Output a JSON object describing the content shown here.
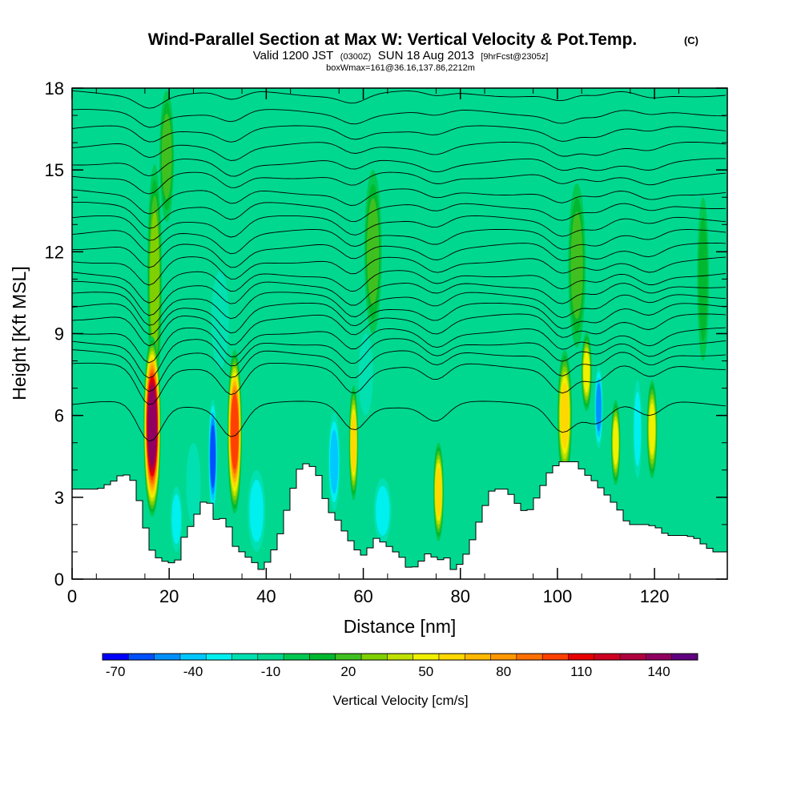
{
  "header": {
    "title": "Wind-Parallel Section at Max W: Vertical Velocity & Pot.Temp.",
    "title_mark": "(C)",
    "subtitle_a": "Valid 1200 JST",
    "subtitle_b": "(0300Z)",
    "subtitle_c": "SUN 18 Aug 2013",
    "subtitle_d": "[9hrFcst@2305z]",
    "subtitle_line3": "boxWmax=161@36.16,137.86,2212m"
  },
  "chart_data": {
    "type": "heatmap",
    "xlabel": "Distance [nm]",
    "ylabel": "Height [Kft MSL]",
    "xlim": [
      0,
      135
    ],
    "ylim": [
      0,
      18
    ],
    "x_ticks": [
      "0",
      "20",
      "40",
      "60",
      "80",
      "100",
      "120"
    ],
    "y_ticks": [
      "0",
      "3",
      "6",
      "9",
      "12",
      "15",
      "18"
    ],
    "terrain_kft": [
      [
        0,
        3.3
      ],
      [
        5,
        3.3
      ],
      [
        8,
        3.6
      ],
      [
        10,
        3.9
      ],
      [
        12,
        3.6
      ],
      [
        14,
        2.4
      ],
      [
        15,
        1.4
      ],
      [
        16,
        1.0
      ],
      [
        17,
        0.8
      ],
      [
        19,
        0.6
      ],
      [
        21,
        0.6
      ],
      [
        22,
        1.4
      ],
      [
        24,
        2.0
      ],
      [
        26,
        2.7
      ],
      [
        27,
        3.0
      ],
      [
        28,
        2.7
      ],
      [
        29,
        2.2
      ],
      [
        30,
        2.0
      ],
      [
        31,
        2.6
      ],
      [
        32,
        1.6
      ],
      [
        33,
        1.2
      ],
      [
        35,
        0.9
      ],
      [
        37,
        0.6
      ],
      [
        38,
        0.3
      ],
      [
        40,
        0.7
      ],
      [
        42,
        1.5
      ],
      [
        44,
        2.8
      ],
      [
        46,
        4.0
      ],
      [
        48,
        4.3
      ],
      [
        50,
        3.9
      ],
      [
        51,
        3.3
      ],
      [
        52,
        2.6
      ],
      [
        54,
        2.2
      ],
      [
        56,
        1.6
      ],
      [
        58,
        1.1
      ],
      [
        59,
        0.8
      ],
      [
        61,
        1.2
      ],
      [
        62,
        1.5
      ],
      [
        64,
        1.3
      ],
      [
        66,
        1.0
      ],
      [
        68,
        0.7
      ],
      [
        69,
        0.3
      ],
      [
        71,
        0.6
      ],
      [
        73,
        1.0
      ],
      [
        74,
        0.8
      ],
      [
        75,
        0.7
      ],
      [
        77,
        0.8
      ],
      [
        78,
        0.3
      ],
      [
        80,
        0.7
      ],
      [
        82,
        1.5
      ],
      [
        84,
        2.5
      ],
      [
        86,
        3.3
      ],
      [
        89,
        3.3
      ],
      [
        91,
        2.8
      ],
      [
        93,
        2.4
      ],
      [
        94,
        2.6
      ],
      [
        96,
        3.3
      ],
      [
        98,
        4.0
      ],
      [
        100,
        4.3
      ],
      [
        103,
        4.3
      ],
      [
        105,
        3.9
      ],
      [
        107,
        3.6
      ],
      [
        110,
        3.0
      ],
      [
        112,
        2.6
      ],
      [
        114,
        2.0
      ],
      [
        116,
        2.0
      ],
      [
        118,
        2.0
      ],
      [
        120,
        1.9
      ],
      [
        122,
        1.6
      ],
      [
        126,
        1.6
      ],
      [
        128,
        1.5
      ],
      [
        130,
        1.2
      ],
      [
        132,
        1.0
      ],
      [
        135,
        1.0
      ]
    ],
    "features": [
      {
        "x": 16.5,
        "y": 5.6,
        "w": 3.0,
        "h": 5.5,
        "value": 150
      },
      {
        "x": 17.0,
        "y": 11.0,
        "w": 2.5,
        "h": 7.0,
        "value": 35
      },
      {
        "x": 19.5,
        "y": 15.5,
        "w": 2.5,
        "h": 4.0,
        "value": 25
      },
      {
        "x": 33.5,
        "y": 5.4,
        "w": 2.5,
        "h": 5.0,
        "value": 110
      },
      {
        "x": 58.0,
        "y": 5.0,
        "w": 1.6,
        "h": 3.5,
        "value": 65
      },
      {
        "x": 75.5,
        "y": 3.2,
        "w": 1.8,
        "h": 3.0,
        "value": 70
      },
      {
        "x": 101.5,
        "y": 6.0,
        "w": 2.5,
        "h": 4.0,
        "value": 70
      },
      {
        "x": 106.0,
        "y": 7.6,
        "w": 1.8,
        "h": 2.4,
        "value": 55
      },
      {
        "x": 112.0,
        "y": 5.0,
        "w": 1.6,
        "h": 2.6,
        "value": 55
      },
      {
        "x": 119.5,
        "y": 5.5,
        "w": 1.8,
        "h": 3.0,
        "value": 55
      },
      {
        "x": 62.0,
        "y": 12.0,
        "w": 3.0,
        "h": 5.0,
        "value": 22
      },
      {
        "x": 104.0,
        "y": 11.5,
        "w": 3.0,
        "h": 5.0,
        "value": 22
      },
      {
        "x": 130.0,
        "y": 11.0,
        "w": 2.0,
        "h": 5.0,
        "value": 18
      },
      {
        "x": 29.0,
        "y": 4.5,
        "w": 1.5,
        "h": 3.5,
        "value": -60
      },
      {
        "x": 21.5,
        "y": 2.2,
        "w": 2.0,
        "h": 2.0,
        "value": -35
      },
      {
        "x": 25.0,
        "y": 3.5,
        "w": 2.5,
        "h": 2.5,
        "value": -25
      },
      {
        "x": 38.0,
        "y": 2.5,
        "w": 3.0,
        "h": 2.5,
        "value": -35
      },
      {
        "x": 54.0,
        "y": 4.3,
        "w": 2.0,
        "h": 3.0,
        "value": -45
      },
      {
        "x": 64.0,
        "y": 2.5,
        "w": 3.0,
        "h": 2.0,
        "value": -30
      },
      {
        "x": 108.5,
        "y": 6.3,
        "w": 1.4,
        "h": 2.5,
        "value": -55
      },
      {
        "x": 30.5,
        "y": 9.5,
        "w": 3.0,
        "h": 3.0,
        "value": -25
      },
      {
        "x": 60.5,
        "y": 7.5,
        "w": 2.5,
        "h": 2.5,
        "value": -20
      },
      {
        "x": 116.5,
        "y": 5.5,
        "w": 1.5,
        "h": 3.0,
        "value": -30
      },
      {
        "x": 9.0,
        "y": 12.0,
        "w": 3.5,
        "h": 6.0,
        "value": -12
      },
      {
        "x": 45.0,
        "y": 14.0,
        "w": 3.0,
        "h": 5.0,
        "value": -12
      },
      {
        "x": 88.0,
        "y": 14.0,
        "w": 3.0,
        "h": 5.0,
        "value": -12
      },
      {
        "x": 125.0,
        "y": 13.0,
        "w": 3.0,
        "h": 5.0,
        "value": -10
      }
    ],
    "isotherm_levels_kft": [
      6.4,
      7.8,
      8.3,
      8.7,
      9.1,
      9.6,
      10.0,
      10.4,
      10.8,
      11.2,
      11.7,
      12.2,
      12.7,
      13.2,
      13.7,
      14.2,
      14.8,
      15.3,
      15.9,
      16.5,
      17.1,
      17.8
    ],
    "colorbar": {
      "label": "Vertical Velocity [cm/s]",
      "min": -75,
      "max": 155,
      "step": 10,
      "tick_labels": [
        "-70",
        "-40",
        "-10",
        "20",
        "50",
        "80",
        "110",
        "140"
      ],
      "tick_values": [
        -70,
        -40,
        -10,
        20,
        50,
        80,
        110,
        140
      ],
      "colors": [
        "#0000ff",
        "#0050ff",
        "#0090ff",
        "#00c8ff",
        "#00f0f0",
        "#00e0b0",
        "#00d890",
        "#00c850",
        "#00b830",
        "#40c020",
        "#80d000",
        "#c0e000",
        "#f0f000",
        "#ffd800",
        "#ffb800",
        "#ff9800",
        "#ff7000",
        "#ff4000",
        "#e80000",
        "#d00020",
        "#b00040",
        "#900060",
        "#600080"
      ]
    }
  }
}
